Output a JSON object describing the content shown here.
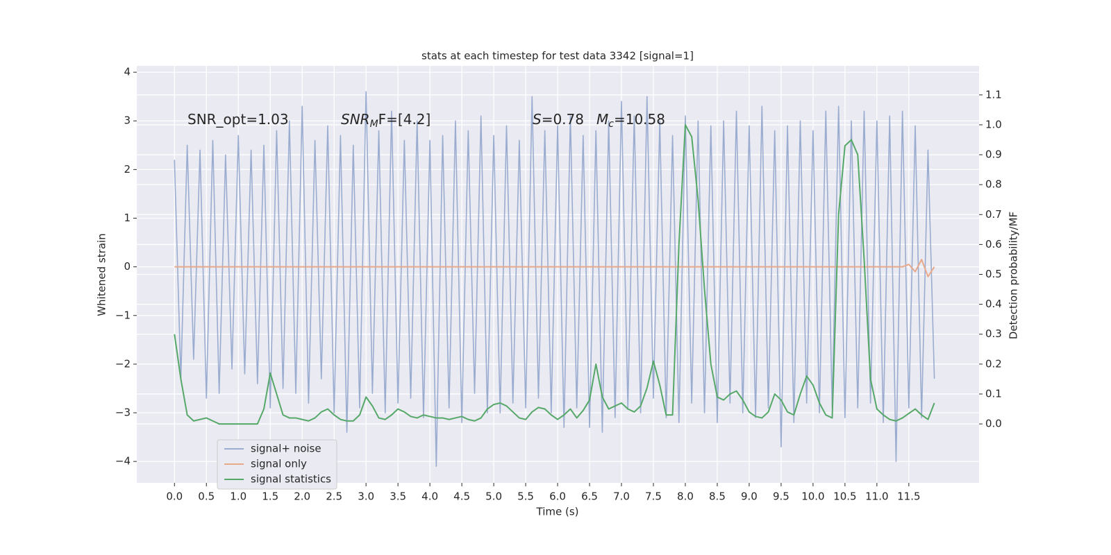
{
  "chart_data": {
    "type": "line",
    "title": "stats at each timestep for test data 3342 [signal=1]",
    "xlabel": "Time (s)",
    "ylabel": "Whitened strain",
    "y2label": "Detection probability/MF",
    "annotations": [
      {
        "main": "SNR_opt=1.03"
      },
      {
        "main": "SNR",
        "sub": "M",
        "tail": "F=[4.2]"
      },
      {
        "main": "S",
        "tail": "=0.78"
      },
      {
        "main": "M",
        "sub": "c",
        "tail": "=10.58"
      }
    ],
    "x": [
      0,
      0.1,
      0.2,
      0.3,
      0.4,
      0.5,
      0.6,
      0.7,
      0.8,
      0.9,
      1,
      1.1,
      1.2,
      1.3,
      1.4,
      1.5,
      1.6,
      1.7,
      1.8,
      1.9,
      2,
      2.1,
      2.2,
      2.3,
      2.4,
      2.5,
      2.6,
      2.7,
      2.8,
      2.9,
      3,
      3.1,
      3.2,
      3.3,
      3.4,
      3.5,
      3.6,
      3.7,
      3.8,
      3.9,
      4,
      4.1,
      4.2,
      4.3,
      4.4,
      4.5,
      4.6,
      4.7,
      4.8,
      4.9,
      5,
      5.1,
      5.2,
      5.3,
      5.4,
      5.5,
      5.6,
      5.7,
      5.8,
      5.9,
      6,
      6.1,
      6.2,
      6.3,
      6.4,
      6.5,
      6.6,
      6.7,
      6.8,
      6.9,
      7,
      7.1,
      7.2,
      7.3,
      7.4,
      7.5,
      7.6,
      7.7,
      7.8,
      7.9,
      8,
      8.1,
      8.2,
      8.3,
      8.4,
      8.5,
      8.6,
      8.7,
      8.8,
      8.9,
      9,
      9.1,
      9.2,
      9.3,
      9.4,
      9.5,
      9.6,
      9.7,
      9.8,
      9.9,
      10,
      10.1,
      10.2,
      10.3,
      10.4,
      10.5,
      10.6,
      10.7,
      10.8,
      10.9,
      11,
      11.1,
      11.2,
      11.3,
      11.4,
      11.5,
      11.6,
      11.7,
      11.8,
      11.9
    ],
    "series": [
      {
        "name": "signal+ noise",
        "color": "#9aaccf",
        "values": [
          2.2,
          -2.3,
          2.5,
          -1.9,
          2.4,
          -2.7,
          2.6,
          -2.6,
          2.3,
          -2.1,
          2.7,
          -2.2,
          2.4,
          -2.4,
          2.5,
          -2.9,
          2.8,
          -2.5,
          3.0,
          -2.6,
          3.3,
          -2.8,
          2.6,
          -2.3,
          2.9,
          -3.0,
          2.7,
          -3.4,
          2.5,
          -2.9,
          3.6,
          -2.6,
          2.8,
          -3.0,
          3.2,
          -2.8,
          2.6,
          -2.7,
          3.0,
          -3.1,
          2.6,
          -4.1,
          2.7,
          -2.9,
          3.0,
          -3.2,
          2.8,
          -2.6,
          3.1,
          -3.0,
          2.7,
          -3.0,
          2.9,
          -2.8,
          2.6,
          -2.9,
          3.5,
          -2.7,
          2.8,
          -3.0,
          2.9,
          -3.3,
          3.1,
          -2.9,
          2.7,
          -3.3,
          2.8,
          -3.4,
          3.0,
          -3.1,
          3.4,
          -2.9,
          3.1,
          -3.0,
          3.5,
          -2.7,
          3.0,
          -3.1,
          2.7,
          -3.2,
          3.1,
          -2.8,
          3.0,
          -3.0,
          2.9,
          -3.2,
          3.0,
          -2.8,
          3.2,
          -3.0,
          2.9,
          -3.1,
          3.3,
          -2.9,
          2.8,
          -3.7,
          2.9,
          -3.2,
          3.0,
          -2.8,
          2.8,
          -3.0,
          3.2,
          -2.9,
          3.3,
          -3.1,
          3.0,
          -2.9,
          3.2,
          -2.8,
          3.0,
          -3.2,
          3.1,
          -4.0,
          3.2,
          -2.9,
          2.9,
          -3.1,
          2.4,
          -2.3
        ]
      },
      {
        "name": "signal only",
        "color": "#e8a98a",
        "values": [
          0,
          0,
          0,
          0,
          0,
          0,
          0,
          0,
          0,
          0,
          0,
          0,
          0,
          0,
          0,
          0,
          0,
          0,
          0,
          0,
          0,
          0,
          0,
          0,
          0,
          0,
          0,
          0,
          0,
          0,
          0,
          0,
          0,
          0,
          0,
          0,
          0,
          0,
          0,
          0,
          0,
          0,
          0,
          0,
          0,
          0,
          0,
          0,
          0,
          0,
          0,
          0,
          0,
          0,
          0,
          0,
          0,
          0,
          0,
          0,
          0,
          0,
          0,
          0,
          0,
          0,
          0,
          0,
          0,
          0,
          0,
          0,
          0,
          0,
          0,
          0,
          0,
          0,
          0,
          0,
          0,
          0,
          0,
          0,
          0,
          0,
          0,
          0,
          0,
          0,
          0,
          0,
          0,
          0,
          0,
          0,
          0,
          0,
          0,
          0,
          0,
          0,
          0,
          0,
          0,
          0,
          0,
          0,
          0,
          0,
          0,
          0,
          0,
          0,
          0,
          0.05,
          -0.1,
          0.15,
          -0.2,
          0
        ]
      },
      {
        "name": "signal statistics",
        "color": "#55a868",
        "axis": "y2",
        "values": [
          0.3,
          0.15,
          0.03,
          0.01,
          0.015,
          0.02,
          0.01,
          0.0,
          0.0,
          0.0,
          0.0,
          0.0,
          0.0,
          0.0,
          0.05,
          0.17,
          0.1,
          0.03,
          0.02,
          0.02,
          0.015,
          0.01,
          0.02,
          0.04,
          0.05,
          0.03,
          0.015,
          0.01,
          0.01,
          0.03,
          0.09,
          0.06,
          0.02,
          0.015,
          0.03,
          0.05,
          0.04,
          0.025,
          0.02,
          0.03,
          0.025,
          0.02,
          0.02,
          0.015,
          0.02,
          0.025,
          0.015,
          0.01,
          0.02,
          0.05,
          0.065,
          0.07,
          0.06,
          0.04,
          0.02,
          0.015,
          0.04,
          0.055,
          0.05,
          0.03,
          0.015,
          0.03,
          0.05,
          0.02,
          0.045,
          0.08,
          0.2,
          0.09,
          0.05,
          0.06,
          0.07,
          0.05,
          0.04,
          0.06,
          0.12,
          0.21,
          0.13,
          0.03,
          0.03,
          0.6,
          1.0,
          0.96,
          0.75,
          0.45,
          0.2,
          0.09,
          0.08,
          0.1,
          0.11,
          0.08,
          0.04,
          0.025,
          0.02,
          0.04,
          0.1,
          0.08,
          0.04,
          0.03,
          0.1,
          0.16,
          0.13,
          0.07,
          0.03,
          0.02,
          0.7,
          0.93,
          0.95,
          0.9,
          0.55,
          0.15,
          0.05,
          0.03,
          0.015,
          0.01,
          0.02,
          0.035,
          0.05,
          0.03,
          0.015,
          0.07
        ]
      }
    ],
    "xlim": [
      -0.59,
      12.6
    ],
    "xticks": [
      {
        "value": 0,
        "label": "0.0"
      },
      {
        "value": 0.5,
        "label": "0.5"
      },
      {
        "value": 1,
        "label": "1.0"
      },
      {
        "value": 1.5,
        "label": "1.5"
      },
      {
        "value": 2,
        "label": "2.0"
      },
      {
        "value": 2.5,
        "label": "2.5"
      },
      {
        "value": 3,
        "label": "3.0"
      },
      {
        "value": 3.5,
        "label": "3.5"
      },
      {
        "value": 4,
        "label": "4.0"
      },
      {
        "value": 4.5,
        "label": "4.5"
      },
      {
        "value": 5,
        "label": "5.0"
      },
      {
        "value": 5.5,
        "label": "5.5"
      },
      {
        "value": 6,
        "label": "6.0"
      },
      {
        "value": 6.5,
        "label": "6.5"
      },
      {
        "value": 7,
        "label": "7.0"
      },
      {
        "value": 7.5,
        "label": "7.5"
      },
      {
        "value": 8,
        "label": "8.0"
      },
      {
        "value": 8.5,
        "label": "8.5"
      },
      {
        "value": 9,
        "label": "9.0"
      },
      {
        "value": 9.5,
        "label": "9.5"
      },
      {
        "value": 10,
        "label": "10.0"
      },
      {
        "value": 10.5,
        "label": "10.5"
      },
      {
        "value": 11,
        "label": "11.0"
      },
      {
        "value": 11.5,
        "label": "11.5"
      }
    ],
    "ylim": [
      -4.44,
      4.13
    ],
    "yticks": [
      {
        "value": -4,
        "label": "−4"
      },
      {
        "value": -3,
        "label": "−3"
      },
      {
        "value": -2,
        "label": "−2"
      },
      {
        "value": -1,
        "label": "−1"
      },
      0,
      1,
      2,
      3,
      4
    ],
    "y2lim": [
      -0.197,
      1.197
    ],
    "y2ticks": [
      {
        "value": 0,
        "label": "0.0"
      },
      0.1,
      0.2,
      0.3,
      0.4,
      0.5,
      0.6,
      0.7,
      0.8,
      0.9,
      {
        "value": 1,
        "label": "1.0"
      },
      1.1
    ],
    "grid": true,
    "legend": "lower left"
  }
}
